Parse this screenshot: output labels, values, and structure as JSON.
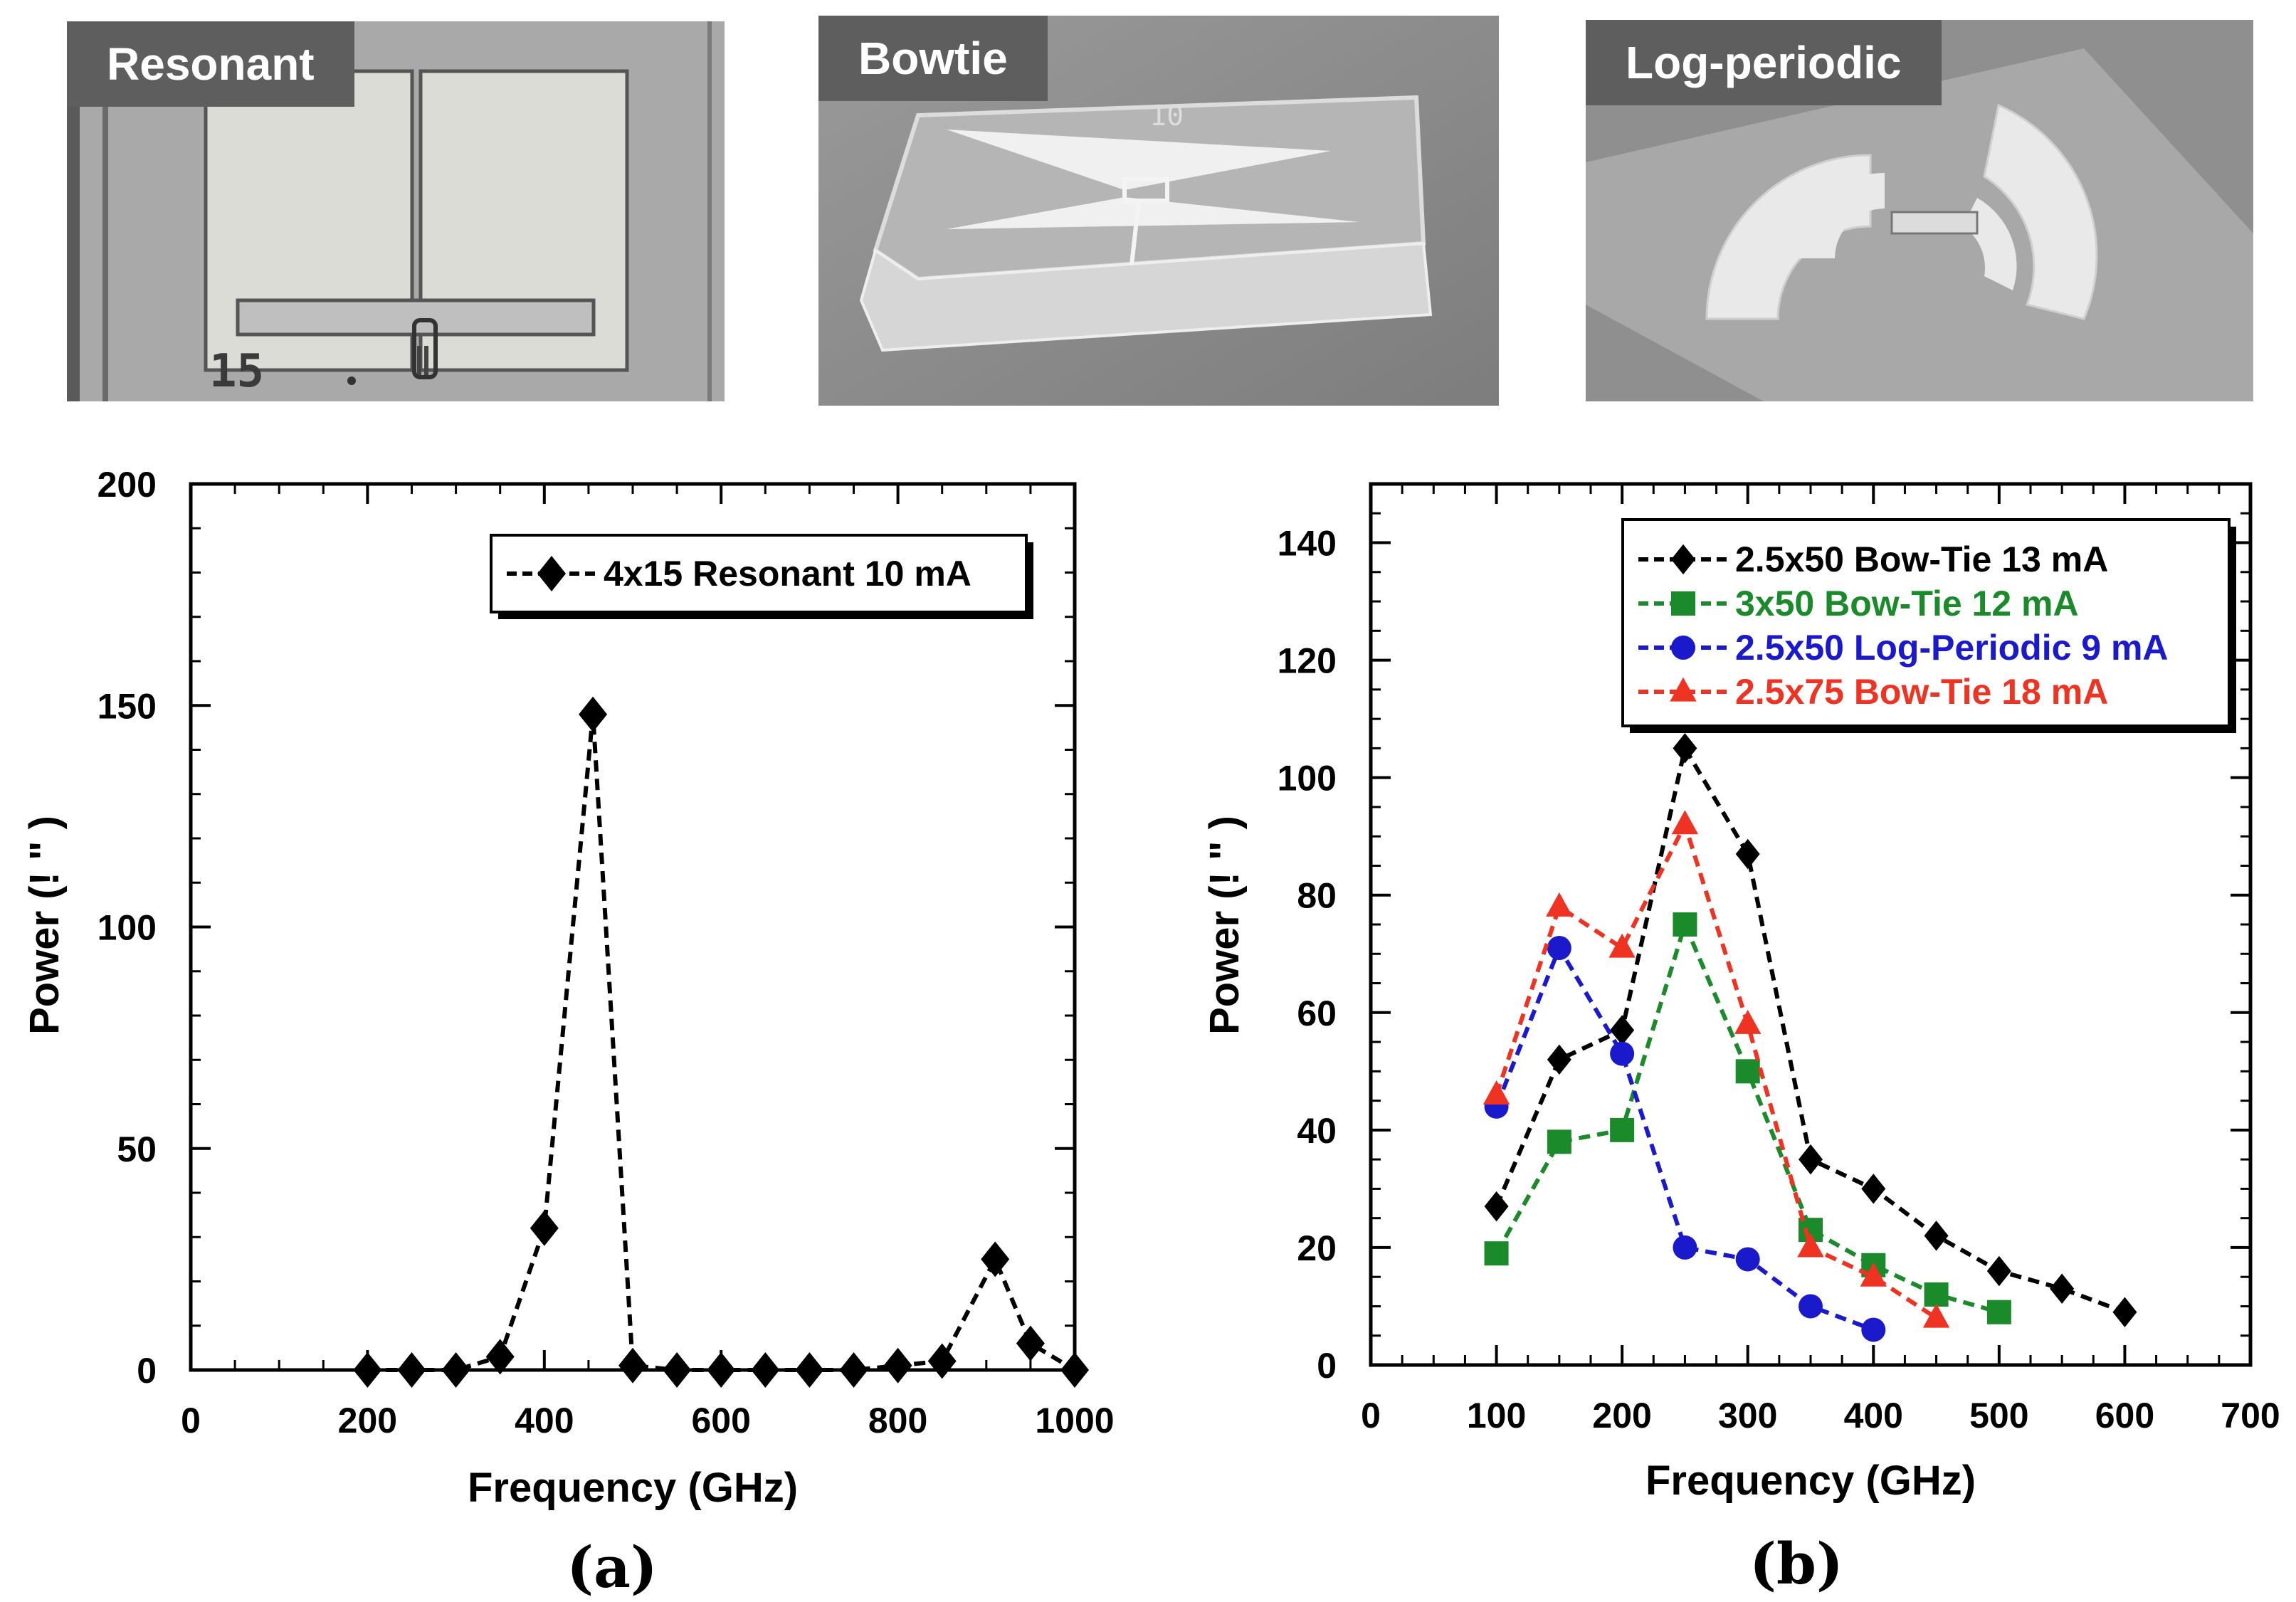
{
  "photos": [
    {
      "label": "Resonant"
    },
    {
      "label": "Bowtie"
    },
    {
      "label": "Log-periodic"
    }
  ],
  "resonant_photo_text": {
    "chip_number": "15"
  },
  "bowtie_photo_text": {
    "chip_number": "10"
  },
  "colors": {
    "black": "#000000",
    "green": "#1a8a2a",
    "blue": "#1a1acc",
    "red": "#ee3322"
  },
  "chart_data": [
    {
      "type": "line",
      "panel": "(a)",
      "xlabel": "Frequency (GHz)",
      "ylabel": "Power (! \" )",
      "xlim": [
        0,
        1000
      ],
      "ylim": [
        0,
        200
      ],
      "xticks": [
        0,
        200,
        400,
        600,
        800,
        1000
      ],
      "yticks": [
        0,
        50,
        100,
        150,
        200
      ],
      "legend_position": "top-right",
      "series": [
        {
          "name": "4x15 Resonant 10 mA",
          "color": "#000000",
          "marker": "diamond",
          "x": [
            200,
            250,
            300,
            350,
            400,
            455,
            500,
            550,
            600,
            650,
            700,
            750,
            800,
            850,
            910,
            950,
            1000
          ],
          "y": [
            0,
            0,
            0,
            3,
            32,
            148,
            1,
            0,
            0,
            0,
            0,
            0,
            1,
            2,
            25,
            6,
            0
          ]
        }
      ]
    },
    {
      "type": "line",
      "panel": "(b)",
      "xlabel": "Frequency (GHz)",
      "ylabel": "Power (! \" )",
      "xlim": [
        0,
        700
      ],
      "ylim": [
        0,
        150
      ],
      "xticks": [
        0,
        100,
        200,
        300,
        400,
        500,
        600,
        700
      ],
      "yticks": [
        0,
        20,
        40,
        60,
        80,
        100,
        120,
        140
      ],
      "legend_position": "top-right",
      "series": [
        {
          "name": "2.5x50 Bow-Tie 13 mA",
          "color": "#000000",
          "marker": "diamond",
          "x": [
            100,
            150,
            200,
            250,
            300,
            350,
            400,
            450,
            500,
            550,
            600
          ],
          "y": [
            27,
            52,
            57,
            105,
            87,
            35,
            30,
            22,
            16,
            13,
            9
          ]
        },
        {
          "name": "3x50 Bow-Tie 12 mA",
          "color": "#1a8a2a",
          "marker": "square",
          "x": [
            100,
            150,
            200,
            250,
            300,
            350,
            400,
            450,
            500
          ],
          "y": [
            19,
            38,
            40,
            75,
            50,
            23,
            17,
            12,
            9
          ]
        },
        {
          "name": "2.5x50 Log-Periodic 9 mA",
          "color": "#1a1acc",
          "marker": "circle",
          "x": [
            100,
            150,
            200,
            250,
            300,
            350,
            400
          ],
          "y": [
            44,
            71,
            53,
            20,
            18,
            10,
            6
          ]
        },
        {
          "name": "2.5x75 Bow-Tie 18 mA",
          "color": "#ee3322",
          "marker": "triangle",
          "x": [
            100,
            150,
            200,
            250,
            300,
            350,
            400,
            450
          ],
          "y": [
            46,
            78,
            71,
            92,
            58,
            20,
            15,
            8
          ]
        }
      ]
    }
  ]
}
